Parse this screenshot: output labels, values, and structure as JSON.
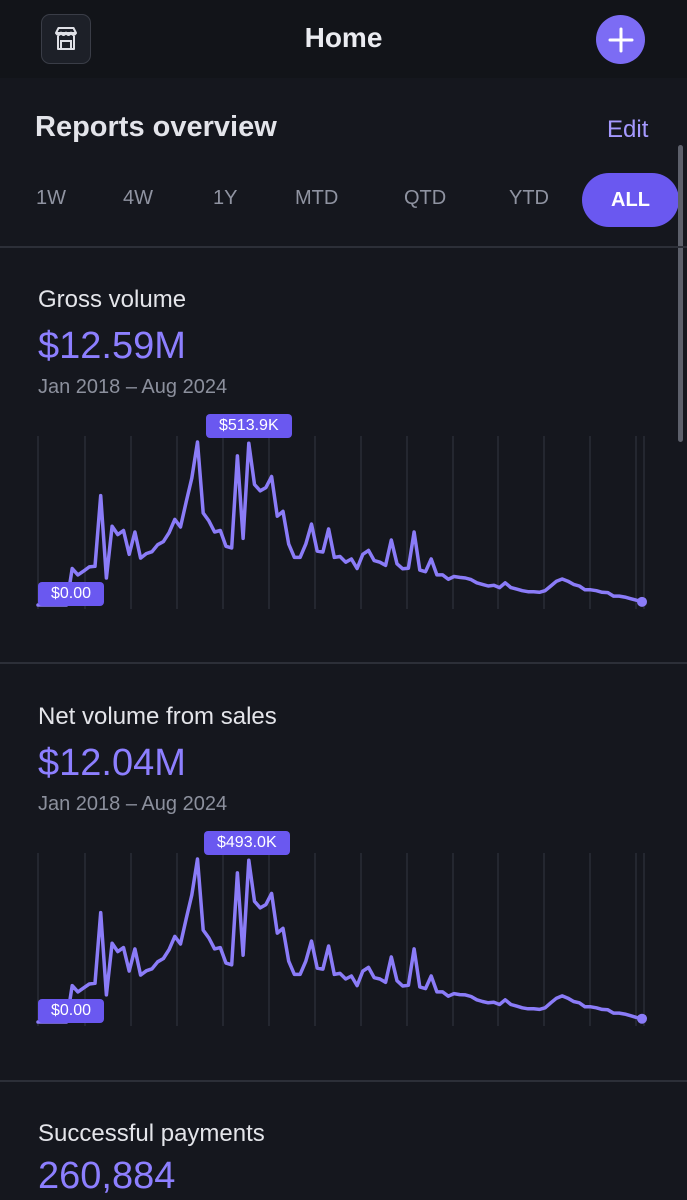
{
  "header": {
    "title": "Home",
    "store_icon": "storefront-icon",
    "add_icon": "plus-icon",
    "accent_color": "#7c6cf4"
  },
  "overview": {
    "title": "Reports overview",
    "edit_label": "Edit",
    "ranges": [
      "1W",
      "4W",
      "1Y",
      "MTD",
      "QTD",
      "YTD",
      "ALL"
    ],
    "selected_range": "ALL"
  },
  "metrics": [
    {
      "label": "Gross volume",
      "value": "$12.59M",
      "period": "Jan 2018 – Aug 2024",
      "chart_data": {
        "type": "line",
        "title": "Gross volume",
        "max_label": "$513.9K",
        "min_label": "$0.00",
        "ylim": [
          0,
          513.9
        ],
        "x_range": [
          "Jan 2018",
          "Aug 2024"
        ],
        "values": [
          0,
          0,
          0,
          0,
          0,
          0,
          115,
          95,
          107,
          120,
          122,
          345,
          85,
          248,
          222,
          235,
          160,
          230,
          148,
          162,
          168,
          190,
          200,
          228,
          270,
          246,
          325,
          400,
          514,
          290,
          265,
          230,
          235,
          185,
          180,
          470,
          210,
          510,
          380,
          360,
          370,
          405,
          280,
          295,
          192,
          150,
          150,
          192,
          255,
          170,
          167,
          240,
          150,
          153,
          135,
          145,
          115,
          160,
          172,
          140,
          135,
          125,
          205,
          130,
          114,
          116,
          230,
          110,
          105,
          145,
          95,
          95,
          81,
          90,
          87,
          85,
          80,
          70,
          65,
          60,
          62,
          55,
          70,
          55,
          50,
          45,
          42,
          42,
          40,
          45,
          60,
          75,
          82,
          75,
          65,
          60,
          48,
          48,
          45,
          40,
          39,
          28,
          28,
          25,
          20,
          15,
          10
        ]
      },
      "colors": {
        "line": "#8b7cf8",
        "tag": "#6a58f0"
      }
    },
    {
      "label": "Net volume from sales",
      "value": "$12.04M",
      "period": "Jan 2018 – Aug 2024",
      "chart_data": {
        "type": "line",
        "title": "Net volume from sales",
        "max_label": "$493.0K",
        "min_label": "$0.00",
        "ylim": [
          0,
          493.0
        ],
        "x_range": [
          "Jan 2018",
          "Aug 2024"
        ],
        "values": [
          0,
          0,
          0,
          0,
          0,
          0,
          110,
          91,
          103,
          115,
          117,
          331,
          82,
          238,
          213,
          225,
          154,
          221,
          142,
          155,
          161,
          182,
          192,
          219,
          259,
          236,
          312,
          384,
          493,
          278,
          254,
          221,
          225,
          178,
          173,
          451,
          202,
          489,
          365,
          345,
          355,
          389,
          269,
          283,
          184,
          144,
          144,
          184,
          245,
          163,
          160,
          230,
          144,
          147,
          130,
          139,
          110,
          154,
          165,
          134,
          130,
          120,
          197,
          125,
          109,
          111,
          221,
          106,
          101,
          139,
          91,
          91,
          78,
          86,
          83,
          82,
          77,
          67,
          62,
          58,
          60,
          53,
          67,
          53,
          48,
          43,
          40,
          40,
          38,
          43,
          58,
          72,
          79,
          72,
          62,
          58,
          46,
          46,
          43,
          38,
          37,
          27,
          27,
          24,
          19,
          14,
          10
        ]
      },
      "colors": {
        "line": "#8b7cf8",
        "tag": "#6a58f0"
      }
    },
    {
      "label": "Successful payments",
      "value": "260,884"
    }
  ]
}
